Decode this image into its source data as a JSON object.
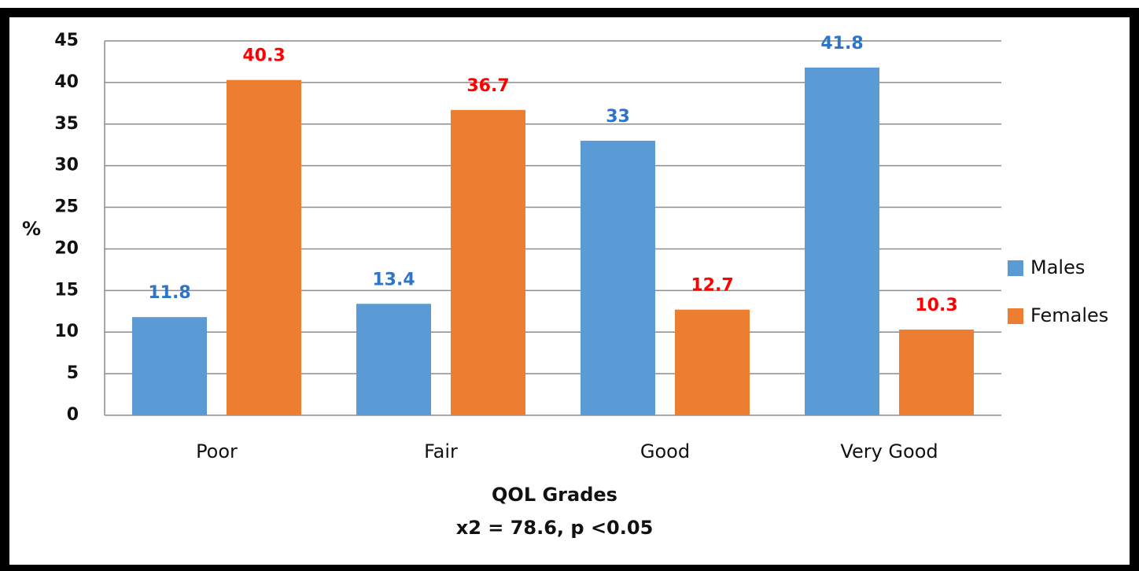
{
  "chart_data": {
    "type": "bar",
    "categories": [
      "Poor",
      "Fair",
      "Good",
      "Very Good"
    ],
    "series": [
      {
        "name": "Males",
        "color": "#5b9bd5",
        "label_color": "#2e75c9",
        "values": [
          11.8,
          13.4,
          33,
          41.8
        ]
      },
      {
        "name": "Females",
        "color": "#ed7d31",
        "label_color": "#ff0000",
        "values": [
          40.3,
          36.7,
          12.7,
          10.3
        ]
      }
    ],
    "y_label": "%",
    "x_label": "QOL Grades",
    "subtitle": "x2 = 78.6, p <0.05",
    "ylim": [
      0,
      45
    ],
    "yticks": [
      0,
      5,
      10,
      15,
      20,
      25,
      30,
      35,
      40,
      45
    ],
    "grid": true,
    "legend": "right"
  }
}
